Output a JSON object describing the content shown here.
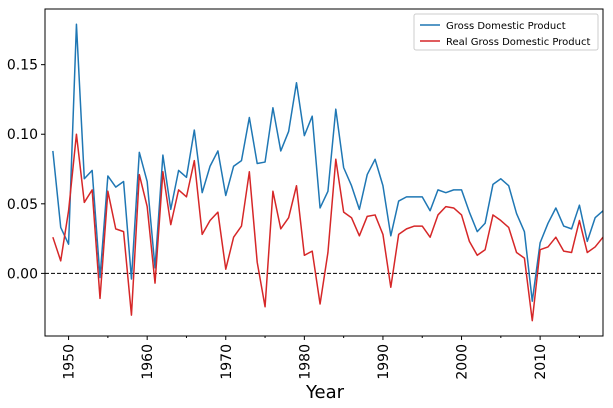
{
  "chart_data": {
    "type": "line",
    "title": "",
    "xlabel": "Year",
    "ylabel": "",
    "xlim": [
      1947,
      2018
    ],
    "ylim": [
      -0.045,
      0.19
    ],
    "x_ticks": [
      1950,
      1960,
      1970,
      1980,
      1990,
      2000,
      2010
    ],
    "x_tick_labels": [
      "1950",
      "1960",
      "1970",
      "1980",
      "1990",
      "2000",
      "2010"
    ],
    "y_ticks": [
      0.0,
      0.05,
      0.1,
      0.15
    ],
    "y_tick_labels": [
      "0.00",
      "0.05",
      "0.10",
      "0.15"
    ],
    "grid": false,
    "reference_line": {
      "y": 0.0,
      "style": "dashed",
      "color": "#000000"
    },
    "legend": {
      "placement": "top-right"
    },
    "x": [
      1948,
      1949,
      1950,
      1951,
      1952,
      1953,
      1954,
      1955,
      1956,
      1957,
      1958,
      1959,
      1960,
      1961,
      1962,
      1963,
      1964,
      1965,
      1966,
      1967,
      1968,
      1969,
      1970,
      1971,
      1972,
      1973,
      1974,
      1975,
      1976,
      1977,
      1978,
      1979,
      1980,
      1981,
      1982,
      1983,
      1984,
      1985,
      1986,
      1987,
      1988,
      1989,
      1990,
      1991,
      1992,
      1993,
      1994,
      1995,
      1996,
      1997,
      1998,
      1999,
      2000,
      2001,
      2002,
      2003,
      2004,
      2005,
      2006,
      2007,
      2008,
      2009,
      2010,
      2011,
      2012,
      2013,
      2014,
      2015,
      2016,
      2017,
      2018
    ],
    "series": [
      {
        "name": "Gross Domestic Product",
        "color": "#1f77b4",
        "values": [
          0.088,
          0.033,
          0.021,
          0.179,
          0.068,
          0.074,
          -0.003,
          0.07,
          0.062,
          0.066,
          -0.004,
          0.087,
          0.066,
          0.004,
          0.085,
          0.046,
          0.074,
          0.069,
          0.103,
          0.058,
          0.077,
          0.088,
          0.056,
          0.077,
          0.081,
          0.112,
          0.079,
          0.08,
          0.119,
          0.088,
          0.102,
          0.137,
          0.099,
          0.113,
          0.047,
          0.059,
          0.118,
          0.076,
          0.063,
          0.046,
          0.071,
          0.082,
          0.063,
          0.027,
          0.052,
          0.055,
          0.055,
          0.055,
          0.045,
          0.06,
          0.058,
          0.06,
          0.06,
          0.044,
          0.03,
          0.036,
          0.064,
          0.068,
          0.063,
          0.043,
          0.03,
          -0.02,
          0.022,
          0.036,
          0.047,
          0.034,
          0.032,
          0.049,
          0.023,
          0.04,
          0.045
        ]
      },
      {
        "name": "Real Gross Domestic Product",
        "color": "#d62728",
        "values": [
          0.026,
          0.009,
          0.045,
          0.1,
          0.051,
          0.06,
          -0.018,
          0.059,
          0.032,
          0.03,
          -0.03,
          0.071,
          0.048,
          -0.007,
          0.073,
          0.035,
          0.06,
          0.055,
          0.081,
          0.028,
          0.038,
          0.044,
          0.003,
          0.026,
          0.034,
          0.073,
          0.008,
          -0.024,
          0.059,
          0.032,
          0.04,
          0.063,
          0.013,
          0.016,
          -0.022,
          0.015,
          0.082,
          0.044,
          0.04,
          0.027,
          0.041,
          0.042,
          0.028,
          -0.01,
          0.028,
          0.032,
          0.034,
          0.034,
          0.026,
          0.042,
          0.048,
          0.047,
          0.042,
          0.023,
          0.013,
          0.017,
          0.042,
          0.038,
          0.033,
          0.015,
          0.011,
          -0.034,
          0.017,
          0.019,
          0.026,
          0.016,
          0.015,
          0.038,
          0.015,
          0.019,
          0.026
        ]
      }
    ]
  }
}
